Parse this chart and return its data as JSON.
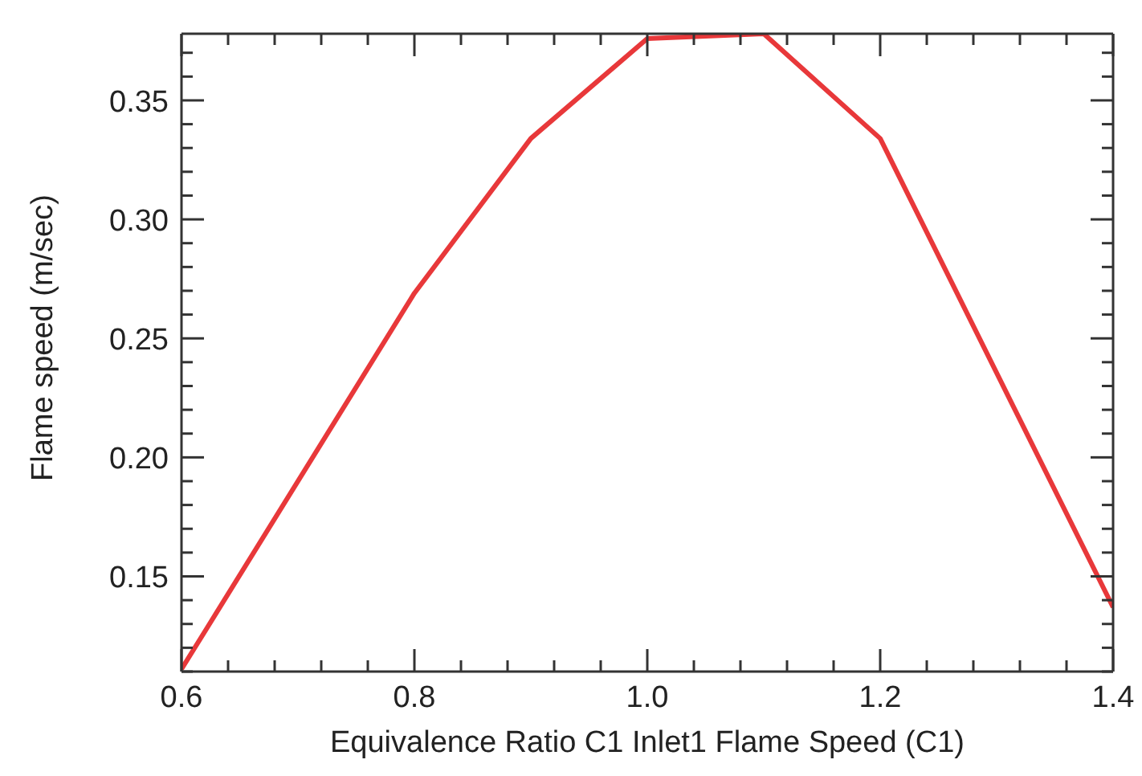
{
  "chart_data": {
    "type": "line",
    "xlabel": "Equivalence Ratio C1 Inlet1 Flame Speed (C1)",
    "ylabel": "Flame speed (m/sec)",
    "x": [
      0.6,
      0.8,
      0.9,
      1.0,
      1.1,
      1.2,
      1.4
    ],
    "series": [
      {
        "color": "#e8383a",
        "values": [
          0.111,
          0.269,
          0.334,
          0.376,
          0.378,
          0.334,
          0.137
        ]
      }
    ],
    "xlim": [
      0.6,
      1.4
    ],
    "ylim": [
      0.11,
      0.378
    ],
    "xticks": [
      {
        "value": 0.6,
        "label": "0.6"
      },
      {
        "value": 0.64,
        "label": null
      },
      {
        "value": 0.68,
        "label": null
      },
      {
        "value": 0.72,
        "label": null
      },
      {
        "value": 0.76,
        "label": null
      },
      {
        "value": 0.8,
        "label": "0.8"
      },
      {
        "value": 0.84,
        "label": null
      },
      {
        "value": 0.88,
        "label": null
      },
      {
        "value": 0.92,
        "label": null
      },
      {
        "value": 0.96,
        "label": null
      },
      {
        "value": 1.0,
        "label": "1.0"
      },
      {
        "value": 1.04,
        "label": null
      },
      {
        "value": 1.08,
        "label": null
      },
      {
        "value": 1.12,
        "label": null
      },
      {
        "value": 1.16,
        "label": null
      },
      {
        "value": 1.2,
        "label": "1.2"
      },
      {
        "value": 1.24,
        "label": null
      },
      {
        "value": 1.28,
        "label": null
      },
      {
        "value": 1.32,
        "label": null
      },
      {
        "value": 1.36,
        "label": null
      },
      {
        "value": 1.4,
        "label": "1.4"
      }
    ],
    "yticks": [
      {
        "value": 0.11,
        "label": null
      },
      {
        "value": 0.12,
        "label": null
      },
      {
        "value": 0.13,
        "label": null
      },
      {
        "value": 0.14,
        "label": null
      },
      {
        "value": 0.15,
        "label": "0.15"
      },
      {
        "value": 0.16,
        "label": null
      },
      {
        "value": 0.17,
        "label": null
      },
      {
        "value": 0.18,
        "label": null
      },
      {
        "value": 0.19,
        "label": null
      },
      {
        "value": 0.2,
        "label": "0.20"
      },
      {
        "value": 0.21,
        "label": null
      },
      {
        "value": 0.22,
        "label": null
      },
      {
        "value": 0.23,
        "label": null
      },
      {
        "value": 0.24,
        "label": null
      },
      {
        "value": 0.25,
        "label": "0.25"
      },
      {
        "value": 0.26,
        "label": null
      },
      {
        "value": 0.27,
        "label": null
      },
      {
        "value": 0.28,
        "label": null
      },
      {
        "value": 0.29,
        "label": null
      },
      {
        "value": 0.3,
        "label": "0.30"
      },
      {
        "value": 0.31,
        "label": null
      },
      {
        "value": 0.32,
        "label": null
      },
      {
        "value": 0.33,
        "label": null
      },
      {
        "value": 0.34,
        "label": null
      },
      {
        "value": 0.35,
        "label": "0.35"
      },
      {
        "value": 0.36,
        "label": null
      },
      {
        "value": 0.37,
        "label": null
      }
    ],
    "grid": false,
    "legend": false,
    "marker": "none",
    "line_style": "solid"
  }
}
